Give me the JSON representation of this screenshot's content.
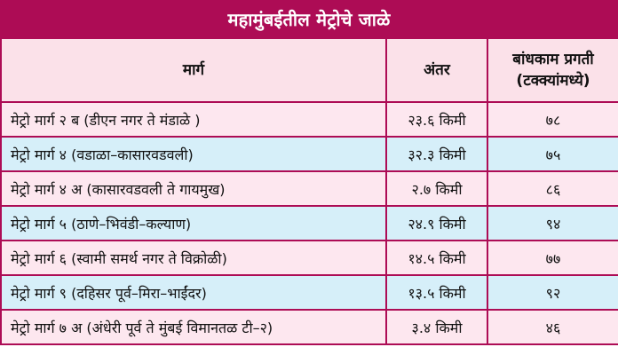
{
  "title": "महामुंबईतील मेट्रोचे जाळे",
  "headers": {
    "route": "मार्ग",
    "distance": "अंतर",
    "progress_line1": "बांधकाम प्रगती",
    "progress_line2": "(टक्क्यांमध्ये)"
  },
  "rows": [
    {
      "route": "मेट्रो मार्ग २ ब (डीएन नगर ते मंडाळे )",
      "distance": "२३.६ किमी",
      "progress": "७८"
    },
    {
      "route": "मेट्रो मार्ग ४ (वडाळा–कासारवडवली)",
      "distance": "३२.३ किमी",
      "progress": "७५"
    },
    {
      "route": "मेट्रो मार्ग ४ अ (कासारवडवली ते गायमुख)",
      "distance": "२.७ किमी",
      "progress": "८६"
    },
    {
      "route": "मेट्रो मार्ग ५ (ठाणे–भिवंडी–कल्याण)",
      "distance": "२४.९ किमी",
      "progress": "९४"
    },
    {
      "route": "मेट्रो मार्ग ६ (स्वामी समर्थ नगर ते विक्रोळी)",
      "distance": "१४.५ किमी",
      "progress": "७७"
    },
    {
      "route": "मेट्रो मार्ग ९ (दहिसर पूर्व–मिरा–भाईंदर)",
      "distance": "१३.५ किमी",
      "progress": "९२"
    },
    {
      "route": "मेट्रो मार्ग ७ अ (अंधेरी पूर्व ते मुंबई विमानतळ टी–२)",
      "distance": "३.४ किमी",
      "progress": "४६"
    }
  ],
  "colors": {
    "title_bg": "#ad0c55",
    "border": "#ad0c55",
    "header_bg": "#fbe1e9",
    "row_pink": "#fde7ef",
    "row_blue": "#d6eff9"
  }
}
